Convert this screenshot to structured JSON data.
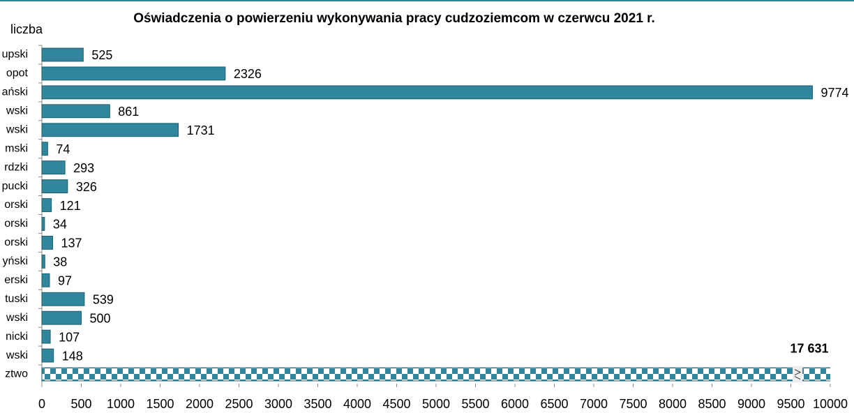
{
  "chart_data": {
    "type": "bar",
    "orientation": "horizontal",
    "title": "Oświadczenia o powierzeniu wykonywania pracy cudzoziemcom w czerwcu 2021 r.",
    "y_label": "liczba",
    "categories": [
      "upski",
      "opot",
      "ański",
      "wski",
      "wski",
      "mski",
      "rdzki",
      "pucki",
      "orski",
      "orski",
      "orski",
      "yński",
      "erski",
      "tuski",
      "wski",
      "nicki",
      "wski",
      "ztwo"
    ],
    "values": [
      525,
      2326,
      9774,
      861,
      1731,
      74,
      293,
      326,
      121,
      34,
      137,
      38,
      97,
      539,
      500,
      107,
      148,
      17631
    ],
    "value_labels": [
      "525",
      "2326",
      "9774",
      "861",
      "1731",
      "74",
      "293",
      "326",
      "121",
      "34",
      "137",
      "38",
      "97",
      "539",
      "500",
      "107",
      "148",
      "17 631"
    ],
    "color": "#31859c",
    "xlim": [
      0,
      10000
    ],
    "xticks": [
      0,
      500,
      1000,
      1500,
      2000,
      2500,
      3000,
      3500,
      4000,
      4500,
      5000,
      5500,
      6000,
      6500,
      7000,
      7500,
      8000,
      8500,
      9000,
      9500,
      10000
    ]
  }
}
